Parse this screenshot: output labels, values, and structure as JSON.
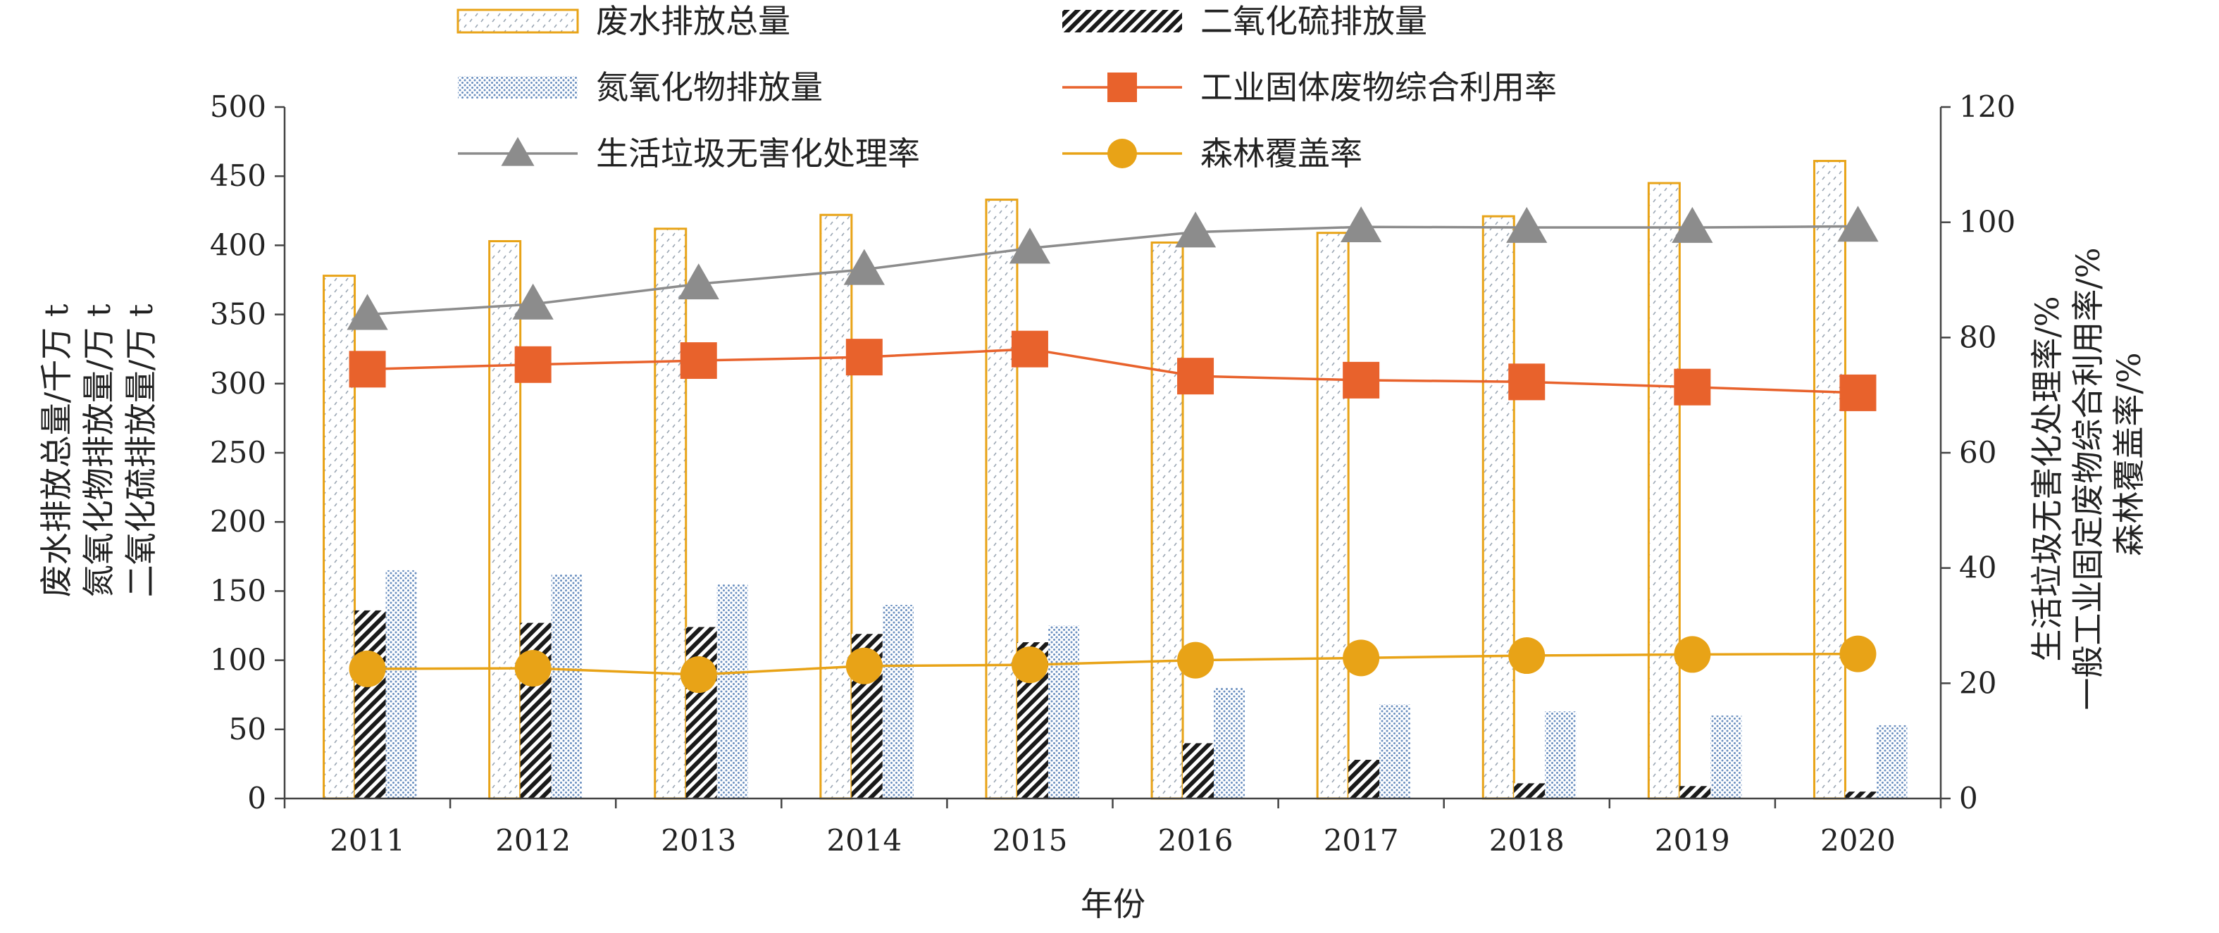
{
  "chart_data": {
    "type": "bar",
    "title": "",
    "xlabel": "年份",
    "categories": [
      "2011",
      "2012",
      "2013",
      "2014",
      "2015",
      "2016",
      "2017",
      "2018",
      "2019",
      "2020"
    ],
    "ylabel_left": [
      "废水排放总量/千万 t",
      "氮氧化物排放量/万 t",
      "二氧化硫排放量/万 t"
    ],
    "ylabel_right": [
      "生活垃圾无害化处理率/%",
      "一般工业固定废物综合利用率/%",
      "森林覆盖率/%"
    ],
    "ylim_left": [
      0,
      500
    ],
    "yticks_left": [
      0,
      50,
      100,
      150,
      200,
      250,
      300,
      350,
      400,
      450,
      500
    ],
    "ylim_right": [
      0,
      120
    ],
    "yticks_right": [
      0,
      20,
      40,
      60,
      80,
      100,
      120
    ],
    "bar_series": [
      {
        "name": "废水排放总量",
        "axis": "left",
        "color": "#E8A317",
        "pattern": "dots",
        "values": [
          378,
          403,
          412,
          422,
          433,
          402,
          409,
          421,
          445,
          461
        ]
      },
      {
        "name": "二氧化硫排放量",
        "axis": "left",
        "color": "#1a1a1a",
        "pattern": "hatch",
        "values": [
          136,
          127,
          124,
          119,
          113,
          40,
          28,
          11,
          9,
          5
        ]
      },
      {
        "name": "氮氧化物排放量",
        "axis": "left",
        "color": "#6A8FBF",
        "pattern": "fine-dots",
        "values": [
          165,
          162,
          155,
          140,
          125,
          80,
          68,
          63,
          60,
          53
        ]
      }
    ],
    "line_series": [
      {
        "name": "工业固体废物综合利用率",
        "axis": "right",
        "color": "#E8622C",
        "marker": "square",
        "values": [
          74.5,
          75.3,
          76.0,
          76.6,
          78.0,
          73.3,
          72.6,
          72.3,
          71.4,
          70.4
        ]
      },
      {
        "name": "生活垃圾无害化处理率",
        "axis": "right",
        "color": "#8C8C8C",
        "marker": "triangle",
        "values": [
          84.0,
          85.8,
          89.3,
          91.8,
          95.5,
          98.3,
          99.2,
          99.1,
          99.1,
          99.3
        ]
      },
      {
        "name": "森林覆盖率",
        "axis": "right",
        "color": "#E8A317",
        "marker": "circle",
        "values": [
          22.5,
          22.6,
          21.5,
          23.0,
          23.2,
          24.0,
          24.4,
          24.8,
          25.0,
          25.1
        ]
      }
    ],
    "legend": [
      {
        "label": "废水排放总量",
        "kind": "bar",
        "series": 0
      },
      {
        "label": "二氧化硫排放量",
        "kind": "bar",
        "series": 1
      },
      {
        "label": "氮氧化物排放量",
        "kind": "bar",
        "series": 2
      },
      {
        "label": "工业固体废物综合利用率",
        "kind": "line",
        "series": 0
      },
      {
        "label": "生活垃圾无害化处理率",
        "kind": "line",
        "series": 1
      },
      {
        "label": "森林覆盖率",
        "kind": "line",
        "series": 2
      }
    ],
    "legend_position": "top"
  }
}
